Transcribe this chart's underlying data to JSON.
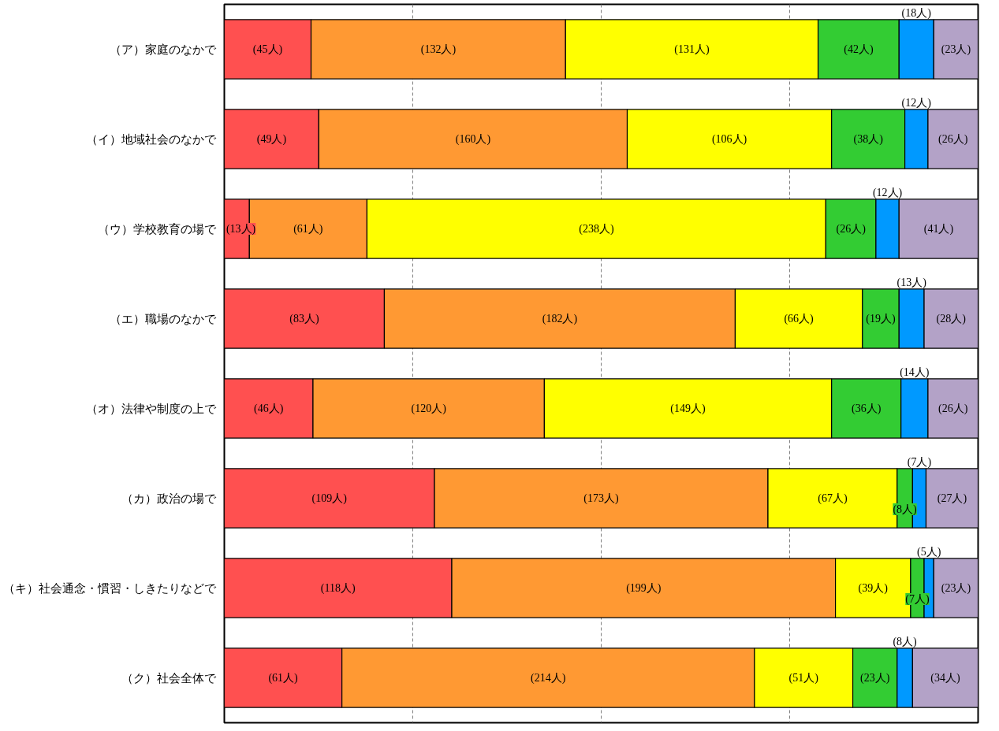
{
  "chart_data": {
    "type": "bar",
    "orientation": "horizontal",
    "stacked": true,
    "categories": [
      "（ア）家庭のなかで",
      "（イ）地域社会のなかで",
      "（ウ）学校教育の場で",
      "（エ）職場のなかで",
      "（オ）法律や制度の上で",
      "（カ）政治の場で",
      "（キ）社会通念・慣習・しきたりなどで",
      "（ク）社会全体で"
    ],
    "series": [
      {
        "color": "#ff5050",
        "values": [
          45,
          49,
          13,
          83,
          46,
          109,
          118,
          61
        ],
        "value_labels": [
          "(45人)",
          "(49人)",
          "(13人)",
          "(83人)",
          "(46人)",
          "(109人)",
          "(118人)",
          "(61人)"
        ]
      },
      {
        "color": "#ff9933",
        "values": [
          132,
          160,
          61,
          182,
          120,
          173,
          199,
          214
        ],
        "value_labels": [
          "(132人)",
          "(160人)",
          "(61人)",
          "(182人)",
          "(120人)",
          "(173人)",
          "(199人)",
          "(214人)"
        ]
      },
      {
        "color": "#ffff00",
        "values": [
          131,
          106,
          238,
          66,
          149,
          67,
          39,
          51
        ],
        "value_labels": [
          "(131人)",
          "(106人)",
          "(238人)",
          "(66人)",
          "(149人)",
          "(67人)",
          "(39人)",
          "(51人)"
        ]
      },
      {
        "color": "#33cc33",
        "values": [
          42,
          38,
          26,
          19,
          36,
          8,
          7,
          23
        ],
        "value_labels": [
          "(42人)",
          "(38人)",
          "(26人)",
          "(19人)",
          "(36人)",
          "(8人)",
          "(7人)",
          "(23人)"
        ]
      },
      {
        "color": "#0099ff",
        "values": [
          18,
          12,
          12,
          13,
          14,
          7,
          5,
          8
        ],
        "value_labels": [
          "(18人)",
          "(12人)",
          "(12人)",
          "(13人)",
          "(14人)",
          "(7人)",
          "(5人)",
          "(8人)"
        ]
      },
      {
        "color": "#b3a2c7",
        "values": [
          23,
          26,
          41,
          28,
          26,
          27,
          23,
          34
        ],
        "value_labels": [
          "(23人)",
          "(26人)",
          "(41人)",
          "(28人)",
          "(26人)",
          "(27人)",
          "(23人)",
          "(34人)"
        ]
      }
    ],
    "xlim": [
      0,
      391
    ],
    "xticks": [
      {
        "value": 97.75,
        "label": null
      },
      {
        "value": 195.5,
        "label": null
      },
      {
        "value": 293.25,
        "label": null
      }
    ],
    "grid": "x",
    "tick_labels": "y"
  }
}
